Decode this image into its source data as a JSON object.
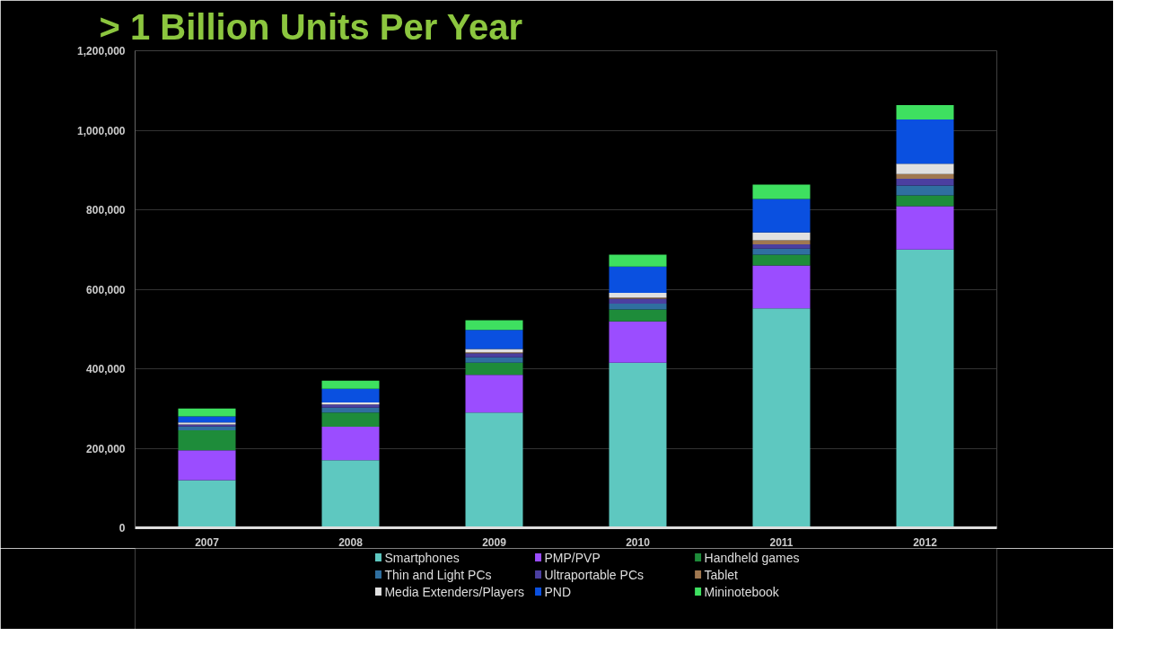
{
  "chart_data": {
    "type": "bar",
    "stacked": true,
    "title": "> 1 Billion Units Per Year",
    "categories": [
      "2007",
      "2008",
      "2009",
      "2010",
      "2011",
      "2012"
    ],
    "series": [
      {
        "name": "Smartphones",
        "color": "#5ec8c0",
        "values": [
          120000,
          170000,
          290000,
          415000,
          552000,
          700000
        ]
      },
      {
        "name": "PMP/PVP",
        "color": "#9b4dff",
        "values": [
          75000,
          84000,
          95000,
          104000,
          108000,
          109000
        ]
      },
      {
        "name": "Handheld games",
        "color": "#1e8c3a",
        "values": [
          50000,
          36000,
          30000,
          30000,
          27000,
          27000
        ]
      },
      {
        "name": "Thin and Light PCs",
        "color": "#2f6fa0",
        "values": [
          10000,
          12000,
          14000,
          15000,
          15000,
          25000
        ]
      },
      {
        "name": "Ultraportable PCs",
        "color": "#4b3fa0",
        "values": [
          5000,
          8000,
          10000,
          12000,
          11000,
          17000
        ]
      },
      {
        "name": "Tablet",
        "color": "#a07850",
        "values": [
          0,
          0,
          2000,
          3000,
          10000,
          12000
        ]
      },
      {
        "name": "Media Extenders/Players",
        "color": "#e0e0e0",
        "values": [
          5000,
          5000,
          9000,
          12000,
          20000,
          26000
        ]
      },
      {
        "name": "PND",
        "color": "#0a50e0",
        "values": [
          15000,
          35000,
          48000,
          66000,
          84000,
          111000
        ]
      },
      {
        "name": "Mininotebook",
        "color": "#3ee060",
        "values": [
          20000,
          20000,
          24000,
          30000,
          36000,
          36000
        ]
      }
    ],
    "ylim": [
      0,
      1200000
    ],
    "yticks": [
      0,
      {
        "value": 200000,
        "label": "200,000"
      },
      {
        "value": 400000,
        "label": "400,000"
      },
      {
        "value": 600000,
        "label": "600,000"
      },
      {
        "value": 800000,
        "label": "800,000"
      },
      {
        "value": 1000000,
        "label": "1,000,000"
      },
      {
        "value": 1200000,
        "label": "1,200,000"
      }
    ],
    "grid": "y",
    "legend": "bottom"
  }
}
